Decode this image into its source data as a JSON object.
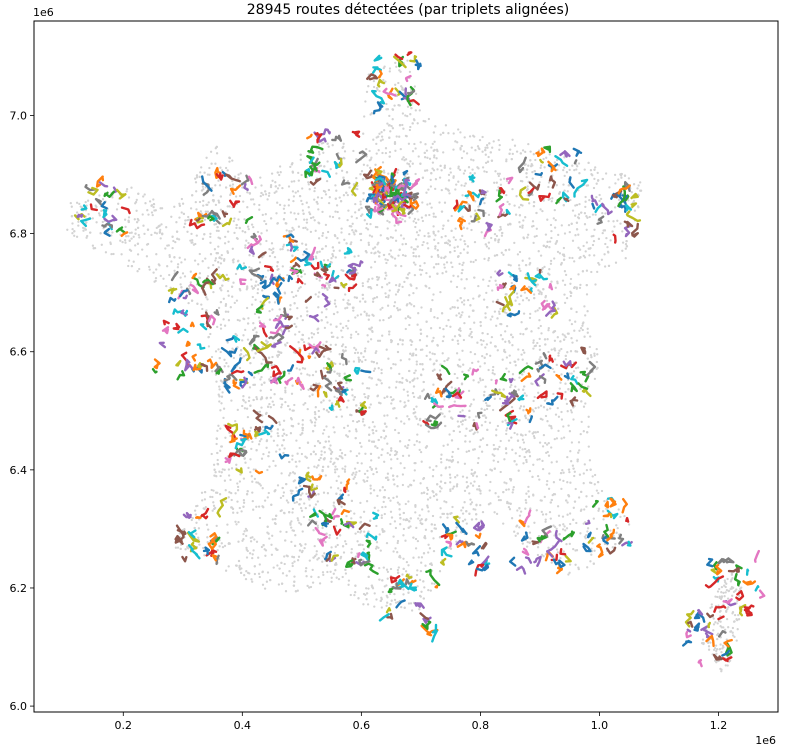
{
  "chart_data": {
    "type": "scatter",
    "title": "28945 routes détectées (par triplets alignées)",
    "x_offset_label": "1e6",
    "y_offset_label": "1e6",
    "xlim": [
      0.05,
      1.3
    ],
    "ylim": [
      5.99,
      7.16
    ],
    "x_ticks": [
      0.2,
      0.4,
      0.6,
      0.8,
      1.0,
      1.2
    ],
    "x_tick_labels": [
      "0.2",
      "0.4",
      "0.6",
      "0.8",
      "1.0",
      "1.2"
    ],
    "y_ticks": [
      6.0,
      6.2,
      6.4,
      6.6,
      6.8,
      7.0
    ],
    "y_tick_labels": [
      "6.0",
      "6.2",
      "6.4",
      "6.6",
      "6.8",
      "7.0"
    ],
    "grid": false,
    "series": [
      {
        "marker": "point",
        "color": "#d3d3d3",
        "outline_x": [
          0.1,
          0.22,
          0.28,
          0.36,
          0.4,
          0.47,
          0.55,
          0.6,
          0.61,
          0.68,
          0.7,
          0.78,
          0.86,
          0.95,
          1.08,
          1.05,
          1.0,
          0.98,
          1.0,
          0.98,
          1.02,
          1.06,
          1.03,
          0.95,
          0.88,
          0.82,
          0.75,
          0.7,
          0.6,
          0.55,
          0.5,
          0.42,
          0.35,
          0.28,
          0.34,
          0.36,
          0.34,
          0.34,
          0.28,
          0.18,
          0.1
        ],
        "outline_y": [
          6.85,
          6.88,
          6.84,
          6.96,
          6.9,
          6.92,
          6.97,
          6.93,
          7.08,
          7.1,
          7.0,
          6.97,
          6.96,
          6.93,
          6.89,
          6.76,
          6.73,
          6.66,
          6.59,
          6.46,
          6.34,
          6.32,
          6.26,
          6.22,
          6.26,
          6.33,
          6.26,
          6.16,
          6.17,
          6.21,
          6.19,
          6.2,
          6.24,
          6.27,
          6.38,
          6.52,
          6.6,
          6.66,
          6.7,
          6.76,
          6.8
        ],
        "corsica_x": [
          1.17,
          1.19,
          1.22,
          1.24,
          1.23,
          1.21,
          1.17
        ],
        "corsica_y": [
          6.11,
          6.18,
          6.23,
          6.2,
          6.1,
          6.05,
          6.11
        ]
      },
      {
        "marker": "line-segments",
        "palette": [
          "#1f77b4",
          "#ff7f0e",
          "#2ca02c",
          "#d62728",
          "#9467bd",
          "#8c564b",
          "#e377c2",
          "#7f7f7f",
          "#bcbd22",
          "#17becf"
        ],
        "cluster_centers": [
          [
            0.65,
            6.87
          ],
          [
            0.65,
            7.06
          ],
          [
            0.55,
            6.93
          ],
          [
            0.17,
            6.84
          ],
          [
            0.32,
            6.7
          ],
          [
            0.45,
            6.76
          ],
          [
            0.42,
            6.44
          ],
          [
            0.84,
            6.52
          ],
          [
            0.94,
            6.56
          ],
          [
            0.9,
            6.27
          ],
          [
            0.77,
            6.27
          ],
          [
            0.58,
            6.28
          ],
          [
            0.92,
            6.9
          ],
          [
            1.03,
            6.84
          ],
          [
            0.88,
            6.69
          ],
          [
            0.4,
            6.59
          ],
          [
            0.33,
            6.28
          ],
          [
            0.47,
            6.68
          ],
          [
            0.58,
            6.54
          ],
          [
            0.75,
            6.52
          ],
          [
            0.53,
            6.34
          ],
          [
            0.56,
            6.74
          ],
          [
            0.8,
            6.85
          ],
          [
            0.37,
            6.86
          ],
          [
            0.3,
            6.61
          ],
          [
            1.01,
            6.31
          ],
          [
            0.69,
            6.18
          ],
          [
            1.23,
            6.2
          ],
          [
            1.18,
            6.12
          ],
          [
            0.5,
            6.58
          ]
        ]
      }
    ]
  }
}
